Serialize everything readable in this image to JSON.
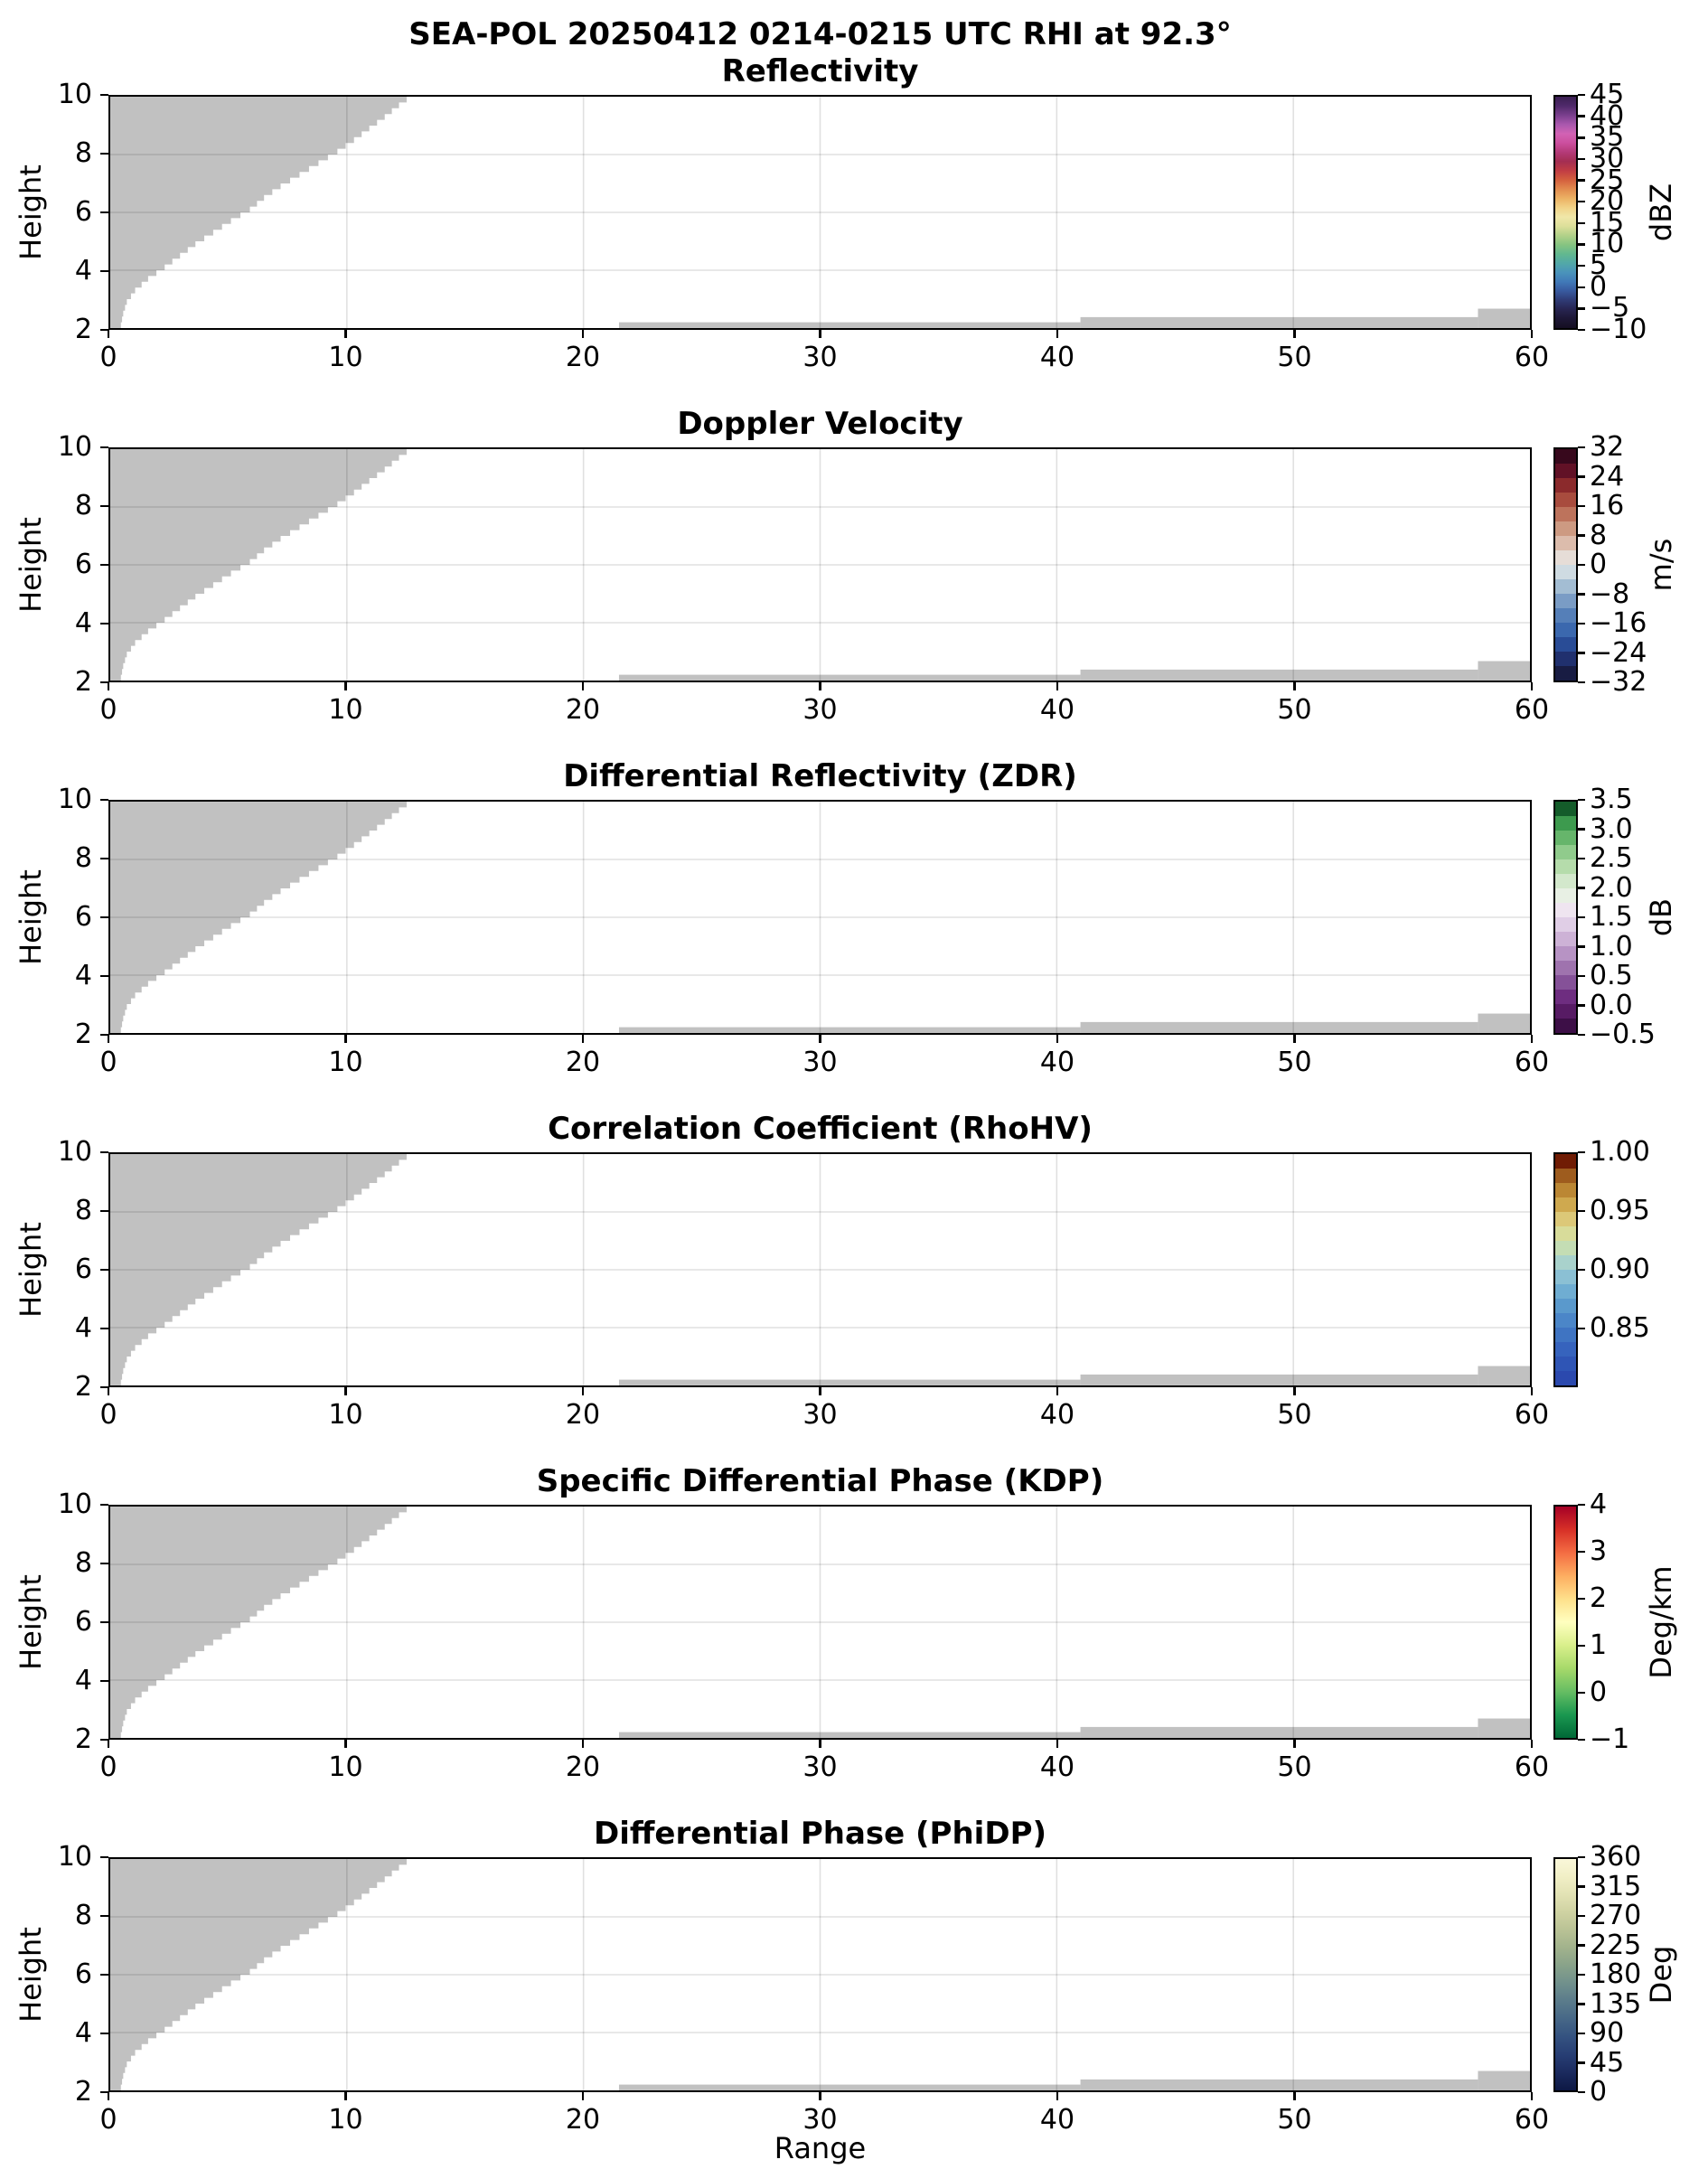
{
  "figure": {
    "suptitle": "SEA-POL 20250412 0214-0215 UTC RHI at 92.3°",
    "xlabel": "Range",
    "ylabel": "Height"
  },
  "chart_data": {
    "type": "heatmap",
    "description": "Six vertically stacked RHI radar cross-section panels sharing the same geometry; all plotted bins are masked (gray = no valid echo): an upper-left stepped blanking wedge plus thin low-level clutter strips near the surface.",
    "x_range": [
      0,
      60
    ],
    "y_range": [
      2,
      10
    ],
    "x_ticks": [
      0,
      10,
      20,
      30,
      40,
      50,
      60
    ],
    "x_tick_labels": [
      "0",
      "10",
      "20",
      "30",
      "40",
      "50",
      "60"
    ],
    "y_ticks": [
      2,
      4,
      6,
      8,
      10
    ],
    "y_tick_labels": [
      "2",
      "4",
      "6",
      "8",
      "10"
    ],
    "x_gridlines": [
      10,
      20,
      30,
      40,
      50
    ],
    "y_gridlines": [
      4,
      6,
      8
    ],
    "masked_color": "#c1c1c1",
    "gridline_color": "rgba(0,0,0,0.12)",
    "masked_regions": {
      "wedge_edge_points_yx": [
        [
          2.0,
          0.45
        ],
        [
          2.4,
          0.55
        ],
        [
          2.8,
          0.7
        ],
        [
          3.2,
          1.05
        ],
        [
          3.6,
          1.6
        ],
        [
          4.0,
          2.3
        ],
        [
          4.4,
          2.95
        ],
        [
          4.8,
          3.6
        ],
        [
          5.2,
          4.35
        ],
        [
          5.6,
          5.1
        ],
        [
          6.0,
          5.9
        ],
        [
          6.4,
          6.5
        ],
        [
          6.8,
          7.2
        ],
        [
          7.2,
          8.0
        ],
        [
          7.6,
          8.8
        ],
        [
          8.0,
          9.6
        ],
        [
          8.4,
          10.3
        ],
        [
          8.8,
          10.95
        ],
        [
          9.2,
          11.6
        ],
        [
          9.6,
          12.2
        ],
        [
          10.0,
          12.85
        ]
      ],
      "bottom_strips": [
        {
          "x0": 21.5,
          "x1": 41.0,
          "top": 2.2
        },
        {
          "x0": 41.0,
          "x1": 57.8,
          "top": 2.38
        },
        {
          "x0": 57.8,
          "x1": 60.0,
          "top": 2.67
        }
      ]
    },
    "panels": [
      {
        "title": "Reflectivity",
        "units": "dBZ",
        "cmin": -10,
        "cmax": 45,
        "tick_values": [
          45,
          40,
          35,
          30,
          25,
          20,
          15,
          10,
          5,
          0,
          -5,
          -10
        ],
        "tick_labels": [
          "45",
          "40",
          "35",
          "30",
          "25",
          "20",
          "15",
          "10",
          "5",
          "0",
          "−5",
          "−10"
        ],
        "discrete": false,
        "colors": [
          "#150e22",
          "#1d1735",
          "#272450",
          "#2f3a74",
          "#38599e",
          "#4179b8",
          "#4a93bb",
          "#52a8a8",
          "#62b88f",
          "#86c481",
          "#b2d189",
          "#dcdf9a",
          "#f0e7a9",
          "#f1d388",
          "#ecb264",
          "#e28c4f",
          "#d4603e",
          "#c13d44",
          "#a42e52",
          "#b43a78",
          "#cc4f9e",
          "#d262b4",
          "#a958ae",
          "#7a3f8d",
          "#502a6b",
          "#3b1f52"
        ]
      },
      {
        "title": "Doppler Velocity",
        "units": "m/s",
        "cmin": -32,
        "cmax": 32,
        "tick_values": [
          32,
          24,
          16,
          8,
          0,
          -8,
          -16,
          -24,
          -32
        ],
        "tick_labels": [
          "32",
          "24",
          "16",
          "8",
          "0",
          "−8",
          "−16",
          "−24",
          "−32"
        ],
        "discrete": true,
        "colors": [
          "#181c43",
          "#20306e",
          "#294c96",
          "#3b68ae",
          "#557fb8",
          "#7a9cc5",
          "#a3bdd3",
          "#cfdbe2",
          "#e6ddd7",
          "#dcbcac",
          "#cd9a82",
          "#bd735c",
          "#a84c3e",
          "#8b2a2c",
          "#611126",
          "#37081c"
        ]
      },
      {
        "title": "Differential Reflectivity (ZDR)",
        "units": "dB",
        "cmin": -0.5,
        "cmax": 3.5,
        "tick_values": [
          3.5,
          3.0,
          2.5,
          2.0,
          1.5,
          1.0,
          0.5,
          0.0,
          -0.5
        ],
        "tick_labels": [
          "3.5",
          "3.0",
          "2.5",
          "2.0",
          "1.5",
          "1.0",
          "0.5",
          "0.0",
          "−0.5"
        ],
        "discrete": true,
        "colors": [
          "#3d0f47",
          "#571b64",
          "#6e2d80",
          "#855198",
          "#9f73ae",
          "#b793c4",
          "#cdb2d6",
          "#e0cee6",
          "#efe5f0",
          "#e8f0e4",
          "#d3e8cc",
          "#b5dcab",
          "#90cb8c",
          "#66b56b",
          "#3d9a4e",
          "#145c2a"
        ]
      },
      {
        "title": "Correlation Coefficient (RhoHV)",
        "units": "",
        "cmin": 0.8,
        "cmax": 1.0,
        "tick_values": [
          1.0,
          0.95,
          0.9,
          0.85
        ],
        "tick_labels": [
          "1.00",
          "0.95",
          "0.90",
          "0.85"
        ],
        "discrete": true,
        "colors": [
          "#2b49ae",
          "#2f55b5",
          "#3663bd",
          "#3f74c2",
          "#4b86c8",
          "#5a99cc",
          "#6fadd2",
          "#8bc0d4",
          "#a9d2cc",
          "#c4ddb4",
          "#d8dc9a",
          "#dcc878",
          "#cfa94f",
          "#bb8734",
          "#9e5c1e",
          "#701c04"
        ]
      },
      {
        "title": "Specific Differential Phase (KDP)",
        "units": "Deg/km",
        "cmin": -1,
        "cmax": 4,
        "tick_values": [
          4,
          3,
          2,
          1,
          0,
          -1
        ],
        "tick_labels": [
          "4",
          "3",
          "2",
          "1",
          "0",
          "−1"
        ],
        "discrete": false,
        "colors": [
          "#006837",
          "#1a9850",
          "#66bd63",
          "#a6d96a",
          "#d9ef8b",
          "#ffffbf",
          "#fee08b",
          "#fdae61",
          "#f46d43",
          "#d73027",
          "#a50026"
        ]
      },
      {
        "title": "Differential Phase (PhiDP)",
        "units": "Deg",
        "cmin": 0,
        "cmax": 360,
        "tick_values": [
          360,
          315,
          270,
          225,
          180,
          135,
          90,
          45,
          0
        ],
        "tick_labels": [
          "360",
          "315",
          "270",
          "225",
          "180",
          "135",
          "90",
          "45",
          "0"
        ],
        "discrete": false,
        "colors": [
          "#0d1844",
          "#1b2a5e",
          "#273e74",
          "#345280",
          "#466787",
          "#5a7b8b",
          "#70908c",
          "#88a28a",
          "#a1b28c",
          "#b9c295",
          "#cfd2a2",
          "#e2e2b4",
          "#f1efc6",
          "#faf7d9"
        ]
      }
    ]
  }
}
